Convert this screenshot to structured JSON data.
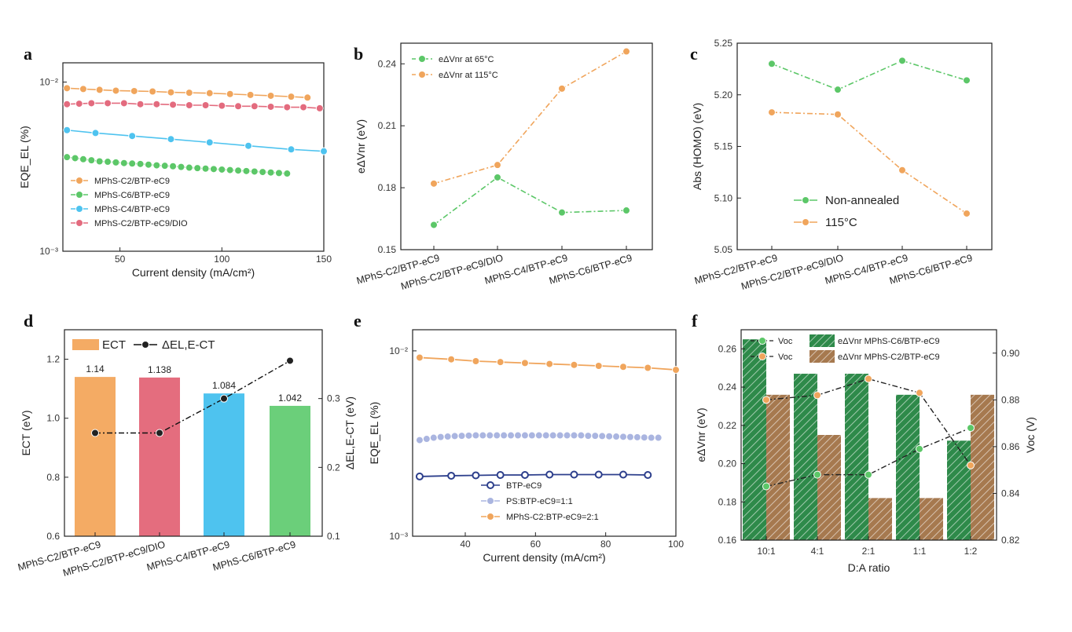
{
  "panels": {
    "a": {
      "letter": "a"
    },
    "b": {
      "letter": "b"
    },
    "c": {
      "letter": "c"
    },
    "d": {
      "letter": "d"
    },
    "e": {
      "letter": "e"
    },
    "f": {
      "letter": "f"
    }
  },
  "chart_data": [
    {
      "id": "a",
      "type": "line",
      "xlabel": "Current density (mA/cm²)",
      "ylabel": "EQE_EL (%)",
      "xlim": [
        22,
        150
      ],
      "xticks": [
        50,
        100,
        150
      ],
      "yscale": "log",
      "ylim": [
        0.001,
        0.013
      ],
      "yticks": [
        0.01,
        0.001
      ],
      "ytick_labels": [
        "10⁻²",
        "10⁻³"
      ],
      "legend_position": "lower-left",
      "series": [
        {
          "name": "MPhS-C2/BTP-eC9",
          "color": "#f0a55c",
          "x": [
            24,
            32,
            40,
            48,
            57,
            66,
            75,
            84,
            94,
            104,
            114,
            124,
            134,
            142
          ],
          "y": [
            0.0092,
            0.0091,
            0.009,
            0.0089,
            0.00885,
            0.0088,
            0.0087,
            0.00865,
            0.0086,
            0.0085,
            0.0084,
            0.0083,
            0.0082,
            0.0081
          ]
        },
        {
          "name": "MPhS-C6/BTP-eC9",
          "color": "#5cc768",
          "x": [
            24,
            28,
            32,
            36,
            40,
            44,
            48,
            52,
            56,
            60,
            64,
            68,
            72,
            76,
            80,
            84,
            88,
            92,
            96,
            100,
            104,
            108,
            112,
            116,
            120,
            124,
            128,
            132
          ],
          "y": [
            0.0036,
            0.00355,
            0.0035,
            0.00345,
            0.0034,
            0.00338,
            0.00335,
            0.00332,
            0.0033,
            0.00328,
            0.00325,
            0.00322,
            0.0032,
            0.00318,
            0.00315,
            0.00312,
            0.0031,
            0.00308,
            0.00306,
            0.00304,
            0.00302,
            0.003,
            0.00298,
            0.00296,
            0.00294,
            0.00292,
            0.0029,
            0.00288
          ]
        },
        {
          "name": "MPhS-C4/BTP-eC9",
          "color": "#4ec3ef",
          "x": [
            24,
            38,
            56,
            75,
            94,
            113,
            134,
            150
          ],
          "y": [
            0.0052,
            0.005,
            0.0048,
            0.0046,
            0.0044,
            0.0042,
            0.004,
            0.0039
          ]
        },
        {
          "name": "MPhS-C2/BTP-eC9/DIO",
          "color": "#e36b7e",
          "x": [
            24,
            30,
            36,
            44,
            52,
            60,
            68,
            76,
            84,
            92,
            100,
            108,
            116,
            124,
            132,
            140,
            148
          ],
          "y": [
            0.0074,
            0.00745,
            0.0075,
            0.0075,
            0.0075,
            0.0074,
            0.0074,
            0.00735,
            0.0073,
            0.0073,
            0.00725,
            0.0072,
            0.0072,
            0.00715,
            0.0071,
            0.0071,
            0.007
          ]
        }
      ]
    },
    {
      "id": "b",
      "type": "line",
      "ylabel": "eΔVnr (eV)",
      "ylim": [
        0.15,
        0.25
      ],
      "yticks": [
        0.15,
        0.18,
        0.21,
        0.24
      ],
      "categories": [
        "MPhS-C2/BTP-eC9",
        "MPhS-C2/BTP-eC9/DIO",
        "MPhS-C4/BTP-eC9",
        "MPhS-C6/BTP-eC9"
      ],
      "legend_position": "top-left",
      "series": [
        {
          "name": "eΔVnr at 65°C",
          "color": "#5cc768",
          "values": [
            0.162,
            0.185,
            0.168,
            0.169
          ]
        },
        {
          "name": "eΔVnr at 115°C",
          "color": "#f0a55c",
          "values": [
            0.182,
            0.191,
            0.228,
            0.246
          ]
        }
      ]
    },
    {
      "id": "c",
      "type": "line",
      "ylabel": "Abs (HOMO) (eV)",
      "ylim": [
        5.05,
        5.25
      ],
      "yticks": [
        5.05,
        5.1,
        5.15,
        5.2,
        5.25
      ],
      "categories": [
        "MPhS-C2/BTP-eC9",
        "MPhS-C2/BTP-eC9/DIO",
        "MPhS-C4/BTP-eC9",
        "MPhS-C6/BTP-eC9"
      ],
      "legend_position": "bottom-center",
      "series": [
        {
          "name": "Non-annealed",
          "color": "#5cc768",
          "values": [
            5.23,
            5.205,
            5.233,
            5.214
          ]
        },
        {
          "name": "115°C",
          "color": "#f0a55c",
          "values": [
            5.183,
            5.181,
            5.127,
            5.085
          ]
        }
      ]
    },
    {
      "id": "d",
      "type": "bar",
      "ylabel": "ECT (eV)",
      "ylabel2": "ΔEL,E-CT (eV)",
      "ylim": [
        0.6,
        1.3
      ],
      "yticks": [
        0.6,
        0.8,
        1.0,
        1.2
      ],
      "y2lim": [
        0.1,
        0.4
      ],
      "y2ticks": [
        0.1,
        0.2,
        0.3
      ],
      "categories": [
        "MPhS-C2/BTP-eC9",
        "MPhS-C2/BTP-eC9/DIO",
        "MPhS-C4/BTP-eC9",
        "MPhS-C6/BTP-eC9"
      ],
      "legend_position": "top-left",
      "series": [
        {
          "name": "ECT",
          "colors": [
            "#f4ab64",
            "#e46d7e",
            "#4ec3ef",
            "#6bcf7a"
          ],
          "values": [
            1.14,
            1.138,
            1.084,
            1.042
          ],
          "labels": [
            "1.14",
            "1.138",
            "1.084",
            "1.042"
          ]
        },
        {
          "name": "ΔEL,E-CT",
          "color": "#111111",
          "axis": "right",
          "values": [
            0.25,
            0.25,
            0.3,
            0.355
          ]
        }
      ]
    },
    {
      "id": "e",
      "type": "line",
      "xlabel": "Current density (mA/cm²)",
      "ylabel": "EQE_EL (%)",
      "xlim": [
        25,
        100
      ],
      "xticks": [
        40,
        60,
        80,
        100
      ],
      "yscale": "log",
      "ylim": [
        0.001,
        0.013
      ],
      "yticks": [
        0.01,
        0.001
      ],
      "ytick_labels": [
        "10⁻²",
        "10⁻³"
      ],
      "legend_position": "lower-center",
      "series": [
        {
          "name": "BTP-eC9",
          "color": "#2d3f8c",
          "x": [
            27,
            36,
            43,
            50,
            57,
            64,
            71,
            78,
            85,
            92
          ],
          "y": [
            0.0021,
            0.00212,
            0.00213,
            0.00214,
            0.00214,
            0.00215,
            0.00215,
            0.00215,
            0.00215,
            0.00214
          ]
        },
        {
          "name": "PS:BTP-eC9=1:1",
          "color": "#aab5e0",
          "x": [
            27,
            29,
            31,
            33,
            35,
            37,
            39,
            41,
            43,
            45,
            47,
            49,
            51,
            53,
            55,
            57,
            59,
            61,
            63,
            65,
            67,
            69,
            71,
            73,
            75,
            77,
            79,
            81,
            83,
            85,
            87,
            89,
            91,
            93,
            95
          ],
          "y": [
            0.0033,
            0.00335,
            0.0034,
            0.00343,
            0.00345,
            0.00347,
            0.00348,
            0.00349,
            0.0035,
            0.0035,
            0.0035,
            0.0035,
            0.0035,
            0.0035,
            0.0035,
            0.0035,
            0.0035,
            0.0035,
            0.0035,
            0.0035,
            0.0035,
            0.0035,
            0.0035,
            0.0035,
            0.00348,
            0.00348,
            0.00347,
            0.00346,
            0.00345,
            0.00344,
            0.00343,
            0.00342,
            0.00341,
            0.0034,
            0.0034
          ]
        },
        {
          "name": "MPhS-C2:BTP-eC9=2:1",
          "color": "#f0a55c",
          "x": [
            27,
            36,
            43,
            50,
            57,
            64,
            71,
            78,
            85,
            92,
            100
          ],
          "y": [
            0.0092,
            0.009,
            0.0088,
            0.0087,
            0.0086,
            0.0085,
            0.0084,
            0.0083,
            0.0082,
            0.0081,
            0.0079
          ]
        }
      ]
    },
    {
      "id": "f",
      "type": "bar",
      "xlabel": "D:A ratio",
      "ylabel": "eΔVnr (eV)",
      "ylabel2": "Voc (V)",
      "categories": [
        "10:1",
        "4:1",
        "2:1",
        "1:1",
        "1:2"
      ],
      "ylim": [
        0.16,
        0.27
      ],
      "yticks": [
        0.16,
        0.18,
        0.2,
        0.22,
        0.24,
        0.26
      ],
      "y2lim": [
        0.82,
        0.91
      ],
      "y2ticks": [
        0.82,
        0.84,
        0.86,
        0.88,
        0.9
      ],
      "legend_position": "top",
      "series": [
        {
          "name": "eΔVnr MPhS-C6/BTP-eC9",
          "kind": "bar",
          "color": "#2e8a4a",
          "values": [
            0.265,
            0.247,
            0.247,
            0.236,
            0.212
          ]
        },
        {
          "name": "eΔVnr MPhS-C2/BTP-eC9",
          "kind": "bar",
          "color": "#a6794f",
          "values": [
            0.236,
            0.215,
            0.182,
            0.182,
            0.236
          ]
        },
        {
          "name": "Voc",
          "kind": "line",
          "axis": "right",
          "color": "#5cc768",
          "values": [
            0.843,
            0.848,
            0.848,
            0.859,
            0.868
          ]
        },
        {
          "name": "Voc",
          "kind": "line",
          "axis": "right",
          "color": "#f0a55c",
          "values": [
            0.88,
            0.882,
            0.889,
            0.883,
            0.852
          ]
        }
      ]
    }
  ]
}
